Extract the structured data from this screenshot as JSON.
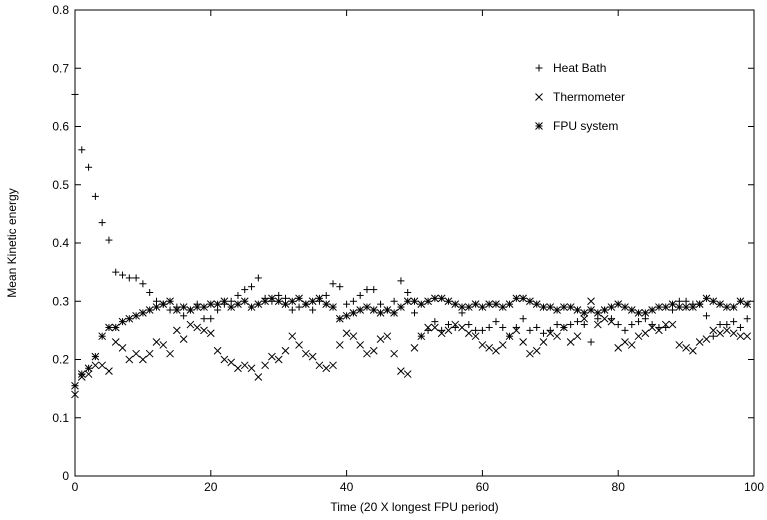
{
  "chart_data": {
    "type": "scatter",
    "title": "",
    "xlabel": "Time (20 X longest FPU period)",
    "ylabel": "Mean Kinetic energy",
    "xlim": [
      0,
      100
    ],
    "ylim": [
      0,
      0.8
    ],
    "x_ticks": [
      "0",
      "20",
      "40",
      "60",
      "80",
      "100"
    ],
    "y_ticks": [
      "0",
      "0.1",
      "0.2",
      "0.3",
      "0.4",
      "0.5",
      "0.6",
      "0.7",
      "0.8"
    ],
    "grid": false,
    "legend_position": "top-right",
    "series": [
      {
        "name": "Heat Bath",
        "marker": "plus",
        "color": "#000000",
        "points": [
          [
            0,
            0.655
          ],
          [
            1,
            0.56
          ],
          [
            2,
            0.53
          ],
          [
            3,
            0.48
          ],
          [
            4,
            0.435
          ],
          [
            5,
            0.405
          ],
          [
            6,
            0.35
          ],
          [
            7,
            0.345
          ],
          [
            8,
            0.34
          ],
          [
            9,
            0.34
          ],
          [
            10,
            0.33
          ],
          [
            11,
            0.315
          ],
          [
            12,
            0.3
          ],
          [
            13,
            0.295
          ],
          [
            14,
            0.285
          ],
          [
            15,
            0.29
          ],
          [
            16,
            0.275
          ],
          [
            17,
            0.285
          ],
          [
            18,
            0.295
          ],
          [
            19,
            0.27
          ],
          [
            20,
            0.27
          ],
          [
            21,
            0.285
          ],
          [
            22,
            0.295
          ],
          [
            23,
            0.3
          ],
          [
            24,
            0.31
          ],
          [
            25,
            0.32
          ],
          [
            26,
            0.325
          ],
          [
            27,
            0.34
          ],
          [
            28,
            0.305
          ],
          [
            29,
            0.3
          ],
          [
            30,
            0.31
          ],
          [
            31,
            0.305
          ],
          [
            32,
            0.285
          ],
          [
            33,
            0.29
          ],
          [
            34,
            0.295
          ],
          [
            35,
            0.285
          ],
          [
            36,
            0.3
          ],
          [
            37,
            0.31
          ],
          [
            38,
            0.33
          ],
          [
            39,
            0.325
          ],
          [
            40,
            0.295
          ],
          [
            41,
            0.3
          ],
          [
            42,
            0.31
          ],
          [
            43,
            0.32
          ],
          [
            44,
            0.32
          ],
          [
            45,
            0.295
          ],
          [
            46,
            0.285
          ],
          [
            47,
            0.3
          ],
          [
            48,
            0.335
          ],
          [
            49,
            0.315
          ],
          [
            50,
            0.28
          ],
          [
            51,
            0.24
          ],
          [
            52,
            0.25
          ],
          [
            53,
            0.265
          ],
          [
            54,
            0.25
          ],
          [
            55,
            0.26
          ],
          [
            56,
            0.255
          ],
          [
            57,
            0.28
          ],
          [
            58,
            0.26
          ],
          [
            59,
            0.25
          ],
          [
            60,
            0.25
          ],
          [
            61,
            0.255
          ],
          [
            62,
            0.265
          ],
          [
            63,
            0.255
          ],
          [
            64,
            0.24
          ],
          [
            65,
            0.255
          ],
          [
            66,
            0.27
          ],
          [
            67,
            0.25
          ],
          [
            68,
            0.255
          ],
          [
            69,
            0.245
          ],
          [
            70,
            0.25
          ],
          [
            71,
            0.26
          ],
          [
            72,
            0.255
          ],
          [
            73,
            0.26
          ],
          [
            74,
            0.265
          ],
          [
            75,
            0.26
          ],
          [
            76,
            0.23
          ],
          [
            77,
            0.27
          ],
          [
            78,
            0.285
          ],
          [
            79,
            0.27
          ],
          [
            80,
            0.26
          ],
          [
            81,
            0.25
          ],
          [
            82,
            0.26
          ],
          [
            83,
            0.265
          ],
          [
            84,
            0.27
          ],
          [
            85,
            0.26
          ],
          [
            86,
            0.255
          ],
          [
            87,
            0.255
          ],
          [
            88,
            0.285
          ],
          [
            89,
            0.3
          ],
          [
            90,
            0.3
          ],
          [
            91,
            0.295
          ],
          [
            92,
            0.295
          ],
          [
            93,
            0.275
          ],
          [
            94,
            0.24
          ],
          [
            95,
            0.26
          ],
          [
            96,
            0.26
          ],
          [
            97,
            0.265
          ],
          [
            98,
            0.255
          ],
          [
            99,
            0.27
          ]
        ]
      },
      {
        "name": "Thermometer",
        "marker": "cross",
        "color": "#000000",
        "points": [
          [
            0,
            0.14
          ],
          [
            1,
            0.17
          ],
          [
            2,
            0.175
          ],
          [
            3,
            0.19
          ],
          [
            4,
            0.19
          ],
          [
            5,
            0.18
          ],
          [
            6,
            0.23
          ],
          [
            7,
            0.22
          ],
          [
            8,
            0.2
          ],
          [
            9,
            0.21
          ],
          [
            10,
            0.2
          ],
          [
            11,
            0.21
          ],
          [
            12,
            0.23
          ],
          [
            13,
            0.225
          ],
          [
            14,
            0.21
          ],
          [
            15,
            0.25
          ],
          [
            16,
            0.235
          ],
          [
            17,
            0.26
          ],
          [
            18,
            0.255
          ],
          [
            19,
            0.25
          ],
          [
            20,
            0.245
          ],
          [
            21,
            0.215
          ],
          [
            22,
            0.2
          ],
          [
            23,
            0.195
          ],
          [
            24,
            0.185
          ],
          [
            25,
            0.19
          ],
          [
            26,
            0.185
          ],
          [
            27,
            0.17
          ],
          [
            28,
            0.19
          ],
          [
            29,
            0.205
          ],
          [
            30,
            0.2
          ],
          [
            31,
            0.215
          ],
          [
            32,
            0.24
          ],
          [
            33,
            0.225
          ],
          [
            34,
            0.21
          ],
          [
            35,
            0.205
          ],
          [
            36,
            0.19
          ],
          [
            37,
            0.185
          ],
          [
            38,
            0.19
          ],
          [
            39,
            0.225
          ],
          [
            40,
            0.245
          ],
          [
            41,
            0.24
          ],
          [
            42,
            0.225
          ],
          [
            43,
            0.21
          ],
          [
            44,
            0.215
          ],
          [
            45,
            0.235
          ],
          [
            46,
            0.24
          ],
          [
            47,
            0.21
          ],
          [
            48,
            0.18
          ],
          [
            49,
            0.175
          ],
          [
            50,
            0.22
          ],
          [
            51,
            0.24
          ],
          [
            52,
            0.255
          ],
          [
            53,
            0.255
          ],
          [
            54,
            0.245
          ],
          [
            55,
            0.25
          ],
          [
            56,
            0.26
          ],
          [
            57,
            0.255
          ],
          [
            58,
            0.245
          ],
          [
            59,
            0.24
          ],
          [
            60,
            0.225
          ],
          [
            61,
            0.22
          ],
          [
            62,
            0.215
          ],
          [
            63,
            0.225
          ],
          [
            64,
            0.24
          ],
          [
            65,
            0.25
          ],
          [
            66,
            0.23
          ],
          [
            67,
            0.21
          ],
          [
            68,
            0.215
          ],
          [
            69,
            0.23
          ],
          [
            70,
            0.245
          ],
          [
            71,
            0.24
          ],
          [
            72,
            0.255
          ],
          [
            73,
            0.23
          ],
          [
            74,
            0.24
          ],
          [
            75,
            0.27
          ],
          [
            76,
            0.3
          ],
          [
            77,
            0.26
          ],
          [
            78,
            0.27
          ],
          [
            79,
            0.265
          ],
          [
            80,
            0.22
          ],
          [
            81,
            0.23
          ],
          [
            82,
            0.225
          ],
          [
            83,
            0.24
          ],
          [
            84,
            0.245
          ],
          [
            85,
            0.255
          ],
          [
            86,
            0.25
          ],
          [
            87,
            0.26
          ],
          [
            88,
            0.26
          ],
          [
            89,
            0.225
          ],
          [
            90,
            0.22
          ],
          [
            91,
            0.215
          ],
          [
            92,
            0.23
          ],
          [
            93,
            0.235
          ],
          [
            94,
            0.25
          ],
          [
            95,
            0.245
          ],
          [
            96,
            0.25
          ],
          [
            97,
            0.245
          ],
          [
            98,
            0.24
          ],
          [
            99,
            0.24
          ]
        ]
      },
      {
        "name": "FPU system",
        "marker": "star",
        "color": "#000000",
        "points": [
          [
            0,
            0.155
          ],
          [
            1,
            0.175
          ],
          [
            2,
            0.185
          ],
          [
            3,
            0.205
          ],
          [
            4,
            0.24
          ],
          [
            5,
            0.255
          ],
          [
            6,
            0.255
          ],
          [
            7,
            0.265
          ],
          [
            8,
            0.27
          ],
          [
            9,
            0.275
          ],
          [
            10,
            0.28
          ],
          [
            11,
            0.285
          ],
          [
            12,
            0.29
          ],
          [
            13,
            0.295
          ],
          [
            14,
            0.3
          ],
          [
            15,
            0.285
          ],
          [
            16,
            0.29
          ],
          [
            17,
            0.285
          ],
          [
            18,
            0.29
          ],
          [
            19,
            0.29
          ],
          [
            20,
            0.295
          ],
          [
            21,
            0.295
          ],
          [
            22,
            0.3
          ],
          [
            23,
            0.29
          ],
          [
            24,
            0.295
          ],
          [
            25,
            0.3
          ],
          [
            26,
            0.29
          ],
          [
            27,
            0.295
          ],
          [
            28,
            0.3
          ],
          [
            29,
            0.305
          ],
          [
            30,
            0.3
          ],
          [
            31,
            0.295
          ],
          [
            32,
            0.3
          ],
          [
            33,
            0.305
          ],
          [
            34,
            0.295
          ],
          [
            35,
            0.3
          ],
          [
            36,
            0.305
          ],
          [
            37,
            0.295
          ],
          [
            38,
            0.29
          ],
          [
            39,
            0.27
          ],
          [
            40,
            0.275
          ],
          [
            41,
            0.28
          ],
          [
            42,
            0.285
          ],
          [
            43,
            0.29
          ],
          [
            44,
            0.285
          ],
          [
            45,
            0.28
          ],
          [
            46,
            0.285
          ],
          [
            47,
            0.28
          ],
          [
            48,
            0.29
          ],
          [
            49,
            0.3
          ],
          [
            50,
            0.3
          ],
          [
            51,
            0.295
          ],
          [
            52,
            0.3
          ],
          [
            53,
            0.305
          ],
          [
            54,
            0.305
          ],
          [
            55,
            0.3
          ],
          [
            56,
            0.295
          ],
          [
            57,
            0.29
          ],
          [
            58,
            0.29
          ],
          [
            59,
            0.295
          ],
          [
            60,
            0.29
          ],
          [
            61,
            0.295
          ],
          [
            62,
            0.295
          ],
          [
            63,
            0.29
          ],
          [
            64,
            0.295
          ],
          [
            65,
            0.305
          ],
          [
            66,
            0.305
          ],
          [
            67,
            0.3
          ],
          [
            68,
            0.295
          ],
          [
            69,
            0.29
          ],
          [
            70,
            0.29
          ],
          [
            71,
            0.285
          ],
          [
            72,
            0.29
          ],
          [
            73,
            0.29
          ],
          [
            74,
            0.285
          ],
          [
            75,
            0.28
          ],
          [
            76,
            0.285
          ],
          [
            77,
            0.28
          ],
          [
            78,
            0.285
          ],
          [
            79,
            0.29
          ],
          [
            80,
            0.295
          ],
          [
            81,
            0.29
          ],
          [
            82,
            0.285
          ],
          [
            83,
            0.28
          ],
          [
            84,
            0.28
          ],
          [
            85,
            0.285
          ],
          [
            86,
            0.29
          ],
          [
            87,
            0.29
          ],
          [
            88,
            0.295
          ],
          [
            89,
            0.29
          ],
          [
            90,
            0.29
          ],
          [
            91,
            0.29
          ],
          [
            92,
            0.295
          ],
          [
            93,
            0.305
          ],
          [
            94,
            0.3
          ],
          [
            95,
            0.295
          ],
          [
            96,
            0.29
          ],
          [
            97,
            0.29
          ],
          [
            98,
            0.3
          ],
          [
            99,
            0.295
          ]
        ]
      }
    ]
  }
}
